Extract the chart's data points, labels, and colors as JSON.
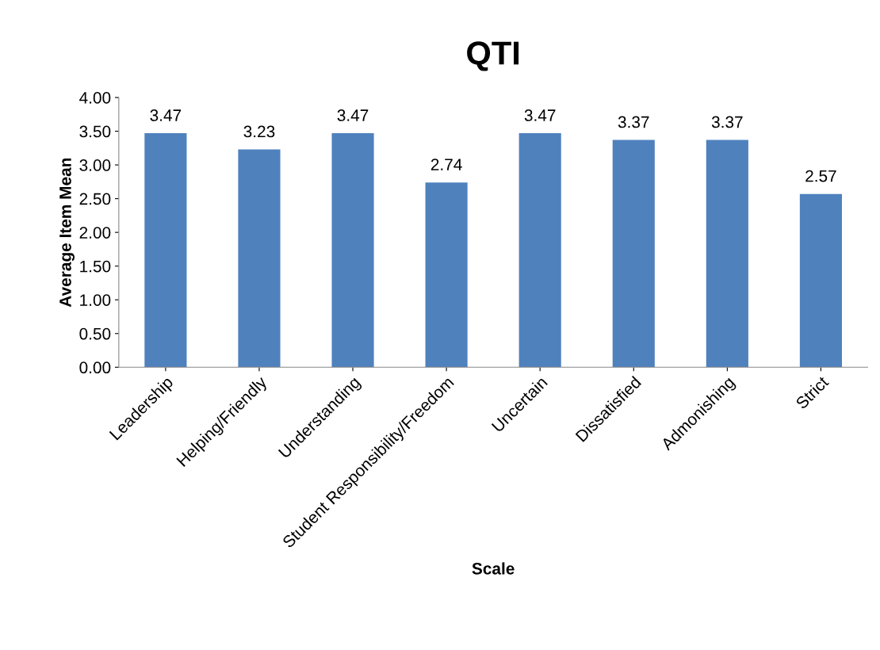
{
  "chart_data": {
    "type": "bar",
    "title": "QTI",
    "xlabel": "Scale",
    "ylabel": "Average Item Mean",
    "categories": [
      "Leadership",
      "Helping/Friendly",
      "Understanding",
      "Student Responsibility/Freedom",
      "Uncertain",
      "Dissatisfied",
      "Admonishing",
      "Strict"
    ],
    "values": [
      3.47,
      3.23,
      3.47,
      2.74,
      3.47,
      3.37,
      3.37,
      2.57
    ],
    "color": "#4f81bd",
    "data_labels": true,
    "grid": false,
    "legend": false,
    "ylim": [
      0,
      4
    ],
    "yticks": [
      {
        "value": 0,
        "label": "0.00"
      },
      {
        "value": 0.5,
        "label": "0.50"
      },
      {
        "value": 1,
        "label": "1.00"
      },
      {
        "value": 1.5,
        "label": "1.50"
      },
      {
        "value": 2,
        "label": "2.00"
      },
      {
        "value": 2.5,
        "label": "2.50"
      },
      {
        "value": 3,
        "label": "3.00"
      },
      {
        "value": 3.5,
        "label": "3.50"
      },
      {
        "value": 4,
        "label": "4.00"
      }
    ]
  }
}
